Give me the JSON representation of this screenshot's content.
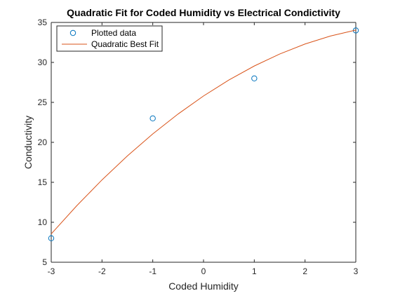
{
  "chart_data": {
    "type": "scatter",
    "title": "Quadratic Fit for Coded Humidity vs Electrical Condictivity",
    "xlabel": "Coded Humidity",
    "ylabel": "Conductivity",
    "xlim": [
      -3,
      3
    ],
    "ylim": [
      5,
      35
    ],
    "xticks": [
      -3,
      -2,
      -1,
      0,
      1,
      2,
      3
    ],
    "yticks": [
      5,
      10,
      15,
      20,
      25,
      30,
      35
    ],
    "grid": false,
    "legend_position": "top-left",
    "series": [
      {
        "name": "Plotted data",
        "kind": "markers",
        "marker": "circle",
        "color": "#0072BD",
        "x": [
          -3,
          -1,
          1,
          3
        ],
        "y": [
          8,
          23,
          28,
          34
        ]
      },
      {
        "name": "Quadratic Best Fit",
        "kind": "line",
        "color": "#D95319",
        "x": [
          -3,
          -2.5,
          -2,
          -1.5,
          -1,
          -0.5,
          0,
          0.5,
          1,
          1.5,
          2,
          2.5,
          3
        ],
        "y": [
          8.55,
          12.05,
          15.3,
          18.3,
          21.05,
          23.55,
          25.8,
          27.8,
          29.55,
          31.05,
          32.3,
          33.3,
          34.05
        ]
      }
    ]
  }
}
